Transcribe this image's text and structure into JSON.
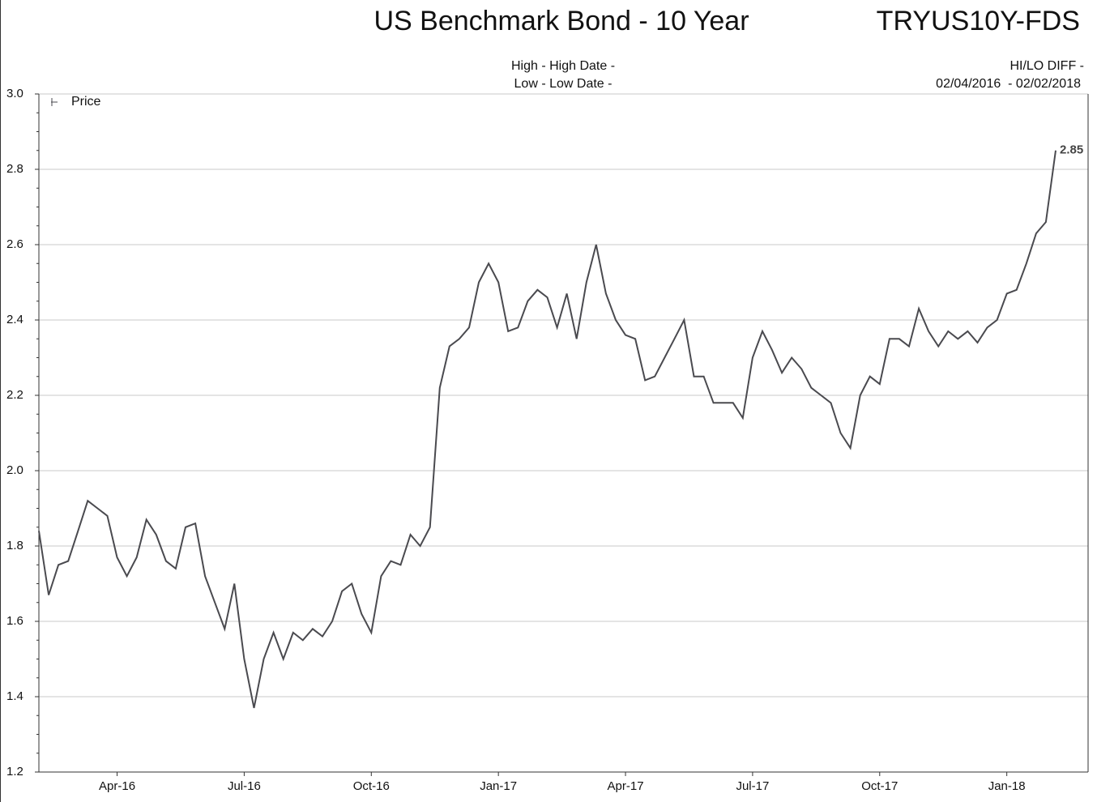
{
  "chart_data": {
    "type": "line",
    "title": "US Benchmark Bond - 10 Year",
    "ticker": "TRYUS10Y-FDS",
    "high_text": "High - High Date -",
    "low_text": "Low - Low Date -",
    "diff_text": "HI/LO DIFF -",
    "date_range": "02/04/2016  - 02/02/2018",
    "categories": [
      null,
      null,
      null,
      null,
      null,
      null,
      null,
      null,
      "Apr-16",
      null,
      null,
      null,
      null,
      null,
      null,
      null,
      null,
      null,
      null,
      null,
      null,
      "Jul-16",
      null,
      null,
      null,
      null,
      null,
      null,
      null,
      null,
      null,
      null,
      null,
      null,
      "Oct-16",
      null,
      null,
      null,
      null,
      null,
      null,
      null,
      null,
      null,
      null,
      null,
      null,
      "Jan-17",
      null,
      null,
      null,
      null,
      null,
      null,
      null,
      null,
      null,
      null,
      null,
      null,
      "Apr-17",
      null,
      null,
      null,
      null,
      null,
      null,
      null,
      null,
      null,
      null,
      null,
      null,
      "Jul-17",
      null,
      null,
      null,
      null,
      null,
      null,
      null,
      null,
      null,
      null,
      null,
      null,
      "Oct-17",
      null,
      null,
      null,
      null,
      null,
      null,
      null,
      null,
      null,
      null,
      null,
      null,
      "Jan-18",
      null,
      null,
      null,
      null,
      null
    ],
    "series": [
      {
        "name": "Price",
        "color": "#4a4a4f",
        "values": [
          1.84,
          1.67,
          1.75,
          1.76,
          1.84,
          1.92,
          1.9,
          1.88,
          1.77,
          1.72,
          1.77,
          1.87,
          1.83,
          1.76,
          1.74,
          1.85,
          1.86,
          1.72,
          1.65,
          1.58,
          1.7,
          1.5,
          1.37,
          1.5,
          1.57,
          1.5,
          1.57,
          1.55,
          1.58,
          1.56,
          1.6,
          1.68,
          1.7,
          1.62,
          1.57,
          1.72,
          1.76,
          1.75,
          1.83,
          1.8,
          1.85,
          2.22,
          2.33,
          2.35,
          2.38,
          2.5,
          2.55,
          2.5,
          2.37,
          2.38,
          2.45,
          2.48,
          2.46,
          2.38,
          2.47,
          2.35,
          2.5,
          2.6,
          2.47,
          2.4,
          2.36,
          2.35,
          2.24,
          2.25,
          2.3,
          2.35,
          2.4,
          2.25,
          2.25,
          2.18,
          2.18,
          2.18,
          2.14,
          2.3,
          2.37,
          2.32,
          2.26,
          2.3,
          2.27,
          2.22,
          2.2,
          2.18,
          2.1,
          2.06,
          2.2,
          2.25,
          2.23,
          2.35,
          2.35,
          2.33,
          2.43,
          2.37,
          2.33,
          2.37,
          2.35,
          2.37,
          2.34,
          2.38,
          2.4,
          2.47,
          2.48,
          2.55,
          2.63,
          2.66,
          2.85
        ]
      }
    ],
    "ylim": [
      1.2,
      3.0
    ],
    "yticks": [
      1.2,
      1.4,
      1.6,
      1.8,
      {
        "value": 2,
        "label": "2.0"
      },
      2.2,
      2.4,
      2.6,
      2.8,
      {
        "value": 3,
        "label": "3.0"
      }
    ],
    "grid": true,
    "legend": "top-left"
  }
}
